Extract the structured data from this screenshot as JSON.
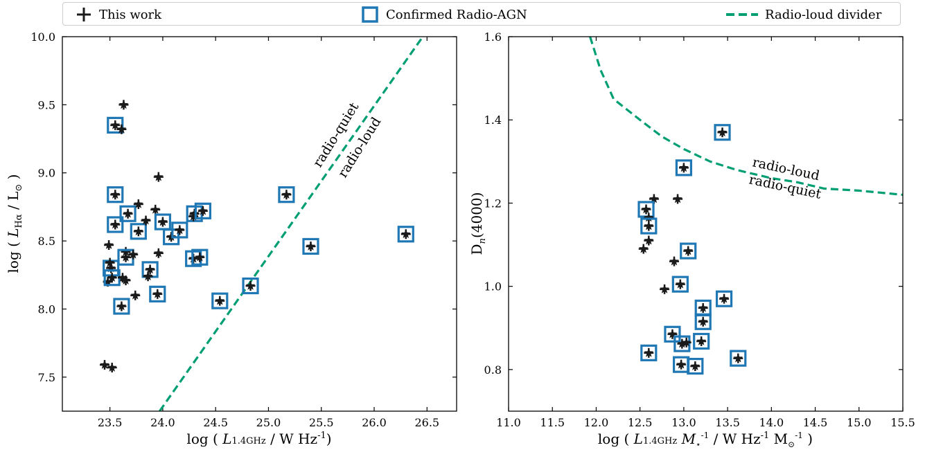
{
  "legend": {
    "this_work": "This work",
    "agn": "Confirmed Radio-AGN",
    "divider": "Radio-loud divider"
  },
  "colors": {
    "marker": "#1a1a1a",
    "agn_box": "#1f77b4",
    "divider": "#009e73"
  },
  "chart_data": [
    {
      "type": "scatter",
      "xlabel": "log ( L1.4GHz / W Hz-1)",
      "ylabel": "log ( LHα / L⊙ )",
      "xlim": [
        23.05,
        26.78
      ],
      "ylim": [
        7.25,
        10.0
      ],
      "xticks": [
        "23.5",
        "24.0",
        "24.5",
        "25.0",
        "25.5",
        "26.0",
        "26.5"
      ],
      "yticks": [
        "7.5",
        "8.0",
        "8.5",
        "9.0",
        "9.5",
        "10.0"
      ],
      "divider_line": [
        [
          23.97,
          7.25
        ],
        [
          26.46,
          10.0
        ]
      ],
      "annotations": [
        "radio-quiet",
        "radio-loud"
      ],
      "points": [
        {
          "x": 23.63,
          "y": 9.5,
          "agn": false
        },
        {
          "x": 23.55,
          "y": 9.35,
          "agn": true
        },
        {
          "x": 23.61,
          "y": 9.32,
          "agn": false
        },
        {
          "x": 23.55,
          "y": 8.84,
          "agn": true
        },
        {
          "x": 23.96,
          "y": 8.97,
          "agn": false
        },
        {
          "x": 23.55,
          "y": 8.62,
          "agn": true
        },
        {
          "x": 23.67,
          "y": 8.7,
          "agn": true
        },
        {
          "x": 23.77,
          "y": 8.77,
          "agn": false
        },
        {
          "x": 23.77,
          "y": 8.57,
          "agn": true
        },
        {
          "x": 23.93,
          "y": 8.73,
          "agn": false
        },
        {
          "x": 23.84,
          "y": 8.65,
          "agn": false
        },
        {
          "x": 24.0,
          "y": 8.64,
          "agn": true
        },
        {
          "x": 24.08,
          "y": 8.53,
          "agn": true
        },
        {
          "x": 24.16,
          "y": 8.58,
          "agn": true
        },
        {
          "x": 24.3,
          "y": 8.7,
          "agn": true
        },
        {
          "x": 24.29,
          "y": 8.68,
          "agn": false
        },
        {
          "x": 24.38,
          "y": 8.72,
          "agn": true
        },
        {
          "x": 23.49,
          "y": 8.47,
          "agn": false
        },
        {
          "x": 23.65,
          "y": 8.42,
          "agn": false
        },
        {
          "x": 23.65,
          "y": 8.38,
          "agn": true
        },
        {
          "x": 23.72,
          "y": 8.4,
          "agn": false
        },
        {
          "x": 23.96,
          "y": 8.41,
          "agn": false
        },
        {
          "x": 23.51,
          "y": 8.3,
          "agn": true
        },
        {
          "x": 23.5,
          "y": 8.34,
          "agn": false
        },
        {
          "x": 23.88,
          "y": 8.29,
          "agn": true
        },
        {
          "x": 23.86,
          "y": 8.24,
          "agn": false
        },
        {
          "x": 24.29,
          "y": 8.37,
          "agn": true
        },
        {
          "x": 24.35,
          "y": 8.38,
          "agn": true
        },
        {
          "x": 23.48,
          "y": 8.2,
          "agn": false
        },
        {
          "x": 23.52,
          "y": 8.23,
          "agn": true
        },
        {
          "x": 23.62,
          "y": 8.23,
          "agn": false
        },
        {
          "x": 23.65,
          "y": 8.21,
          "agn": false
        },
        {
          "x": 23.74,
          "y": 8.1,
          "agn": false
        },
        {
          "x": 23.95,
          "y": 8.11,
          "agn": true
        },
        {
          "x": 23.61,
          "y": 8.02,
          "agn": true
        },
        {
          "x": 24.54,
          "y": 8.06,
          "agn": true
        },
        {
          "x": 24.83,
          "y": 8.17,
          "agn": true
        },
        {
          "x": 25.17,
          "y": 8.84,
          "agn": true
        },
        {
          "x": 25.4,
          "y": 8.46,
          "agn": true
        },
        {
          "x": 26.3,
          "y": 8.55,
          "agn": true
        },
        {
          "x": 23.45,
          "y": 7.59,
          "agn": false
        },
        {
          "x": 23.52,
          "y": 7.57,
          "agn": false
        }
      ]
    },
    {
      "type": "scatter",
      "xlabel": "log ( L1.4GHz M⋆-1 / W Hz-1 M⊙-1 )",
      "ylabel": "Dn(4000)",
      "xlim": [
        11.0,
        15.5
      ],
      "ylim": [
        0.7,
        1.6
      ],
      "xticks": [
        "11.0",
        "11.5",
        "12.0",
        "12.5",
        "13.0",
        "13.5",
        "14.0",
        "14.5",
        "15.0",
        "15.5"
      ],
      "yticks": [
        "0.8",
        "1.0",
        "1.2",
        "1.4",
        "1.6"
      ],
      "divider_curve": [
        [
          11.93,
          1.6
        ],
        [
          12.05,
          1.52
        ],
        [
          12.2,
          1.45
        ],
        [
          12.5,
          1.4
        ],
        [
          12.75,
          1.36
        ],
        [
          13.0,
          1.33
        ],
        [
          13.3,
          1.3
        ],
        [
          13.6,
          1.28
        ],
        [
          14.0,
          1.26
        ],
        [
          14.3,
          1.25
        ],
        [
          14.6,
          1.235
        ],
        [
          15.0,
          1.23
        ],
        [
          15.5,
          1.22
        ]
      ],
      "annotations": [
        "radio-loud",
        "radio-quiet"
      ],
      "points": [
        {
          "x": 13.44,
          "y": 1.37,
          "agn": true
        },
        {
          "x": 13.0,
          "y": 1.285,
          "agn": true
        },
        {
          "x": 12.66,
          "y": 1.21,
          "agn": false
        },
        {
          "x": 12.93,
          "y": 1.21,
          "agn": false
        },
        {
          "x": 12.57,
          "y": 1.185,
          "agn": true
        },
        {
          "x": 12.6,
          "y": 1.165,
          "agn": false
        },
        {
          "x": 12.6,
          "y": 1.145,
          "agn": true
        },
        {
          "x": 12.6,
          "y": 1.11,
          "agn": false
        },
        {
          "x": 12.54,
          "y": 1.09,
          "agn": false
        },
        {
          "x": 13.05,
          "y": 1.085,
          "agn": true
        },
        {
          "x": 12.89,
          "y": 1.06,
          "agn": false
        },
        {
          "x": 12.96,
          "y": 1.005,
          "agn": true
        },
        {
          "x": 12.78,
          "y": 0.993,
          "agn": false
        },
        {
          "x": 13.22,
          "y": 0.948,
          "agn": true
        },
        {
          "x": 13.46,
          "y": 0.97,
          "agn": true
        },
        {
          "x": 13.22,
          "y": 0.915,
          "agn": true
        },
        {
          "x": 12.87,
          "y": 0.885,
          "agn": true
        },
        {
          "x": 12.98,
          "y": 0.862,
          "agn": true
        },
        {
          "x": 13.03,
          "y": 0.865,
          "agn": false
        },
        {
          "x": 13.2,
          "y": 0.868,
          "agn": true
        },
        {
          "x": 12.6,
          "y": 0.84,
          "agn": true
        },
        {
          "x": 13.62,
          "y": 0.827,
          "agn": true
        },
        {
          "x": 12.97,
          "y": 0.812,
          "agn": true
        },
        {
          "x": 13.13,
          "y": 0.808,
          "agn": true
        }
      ]
    }
  ]
}
